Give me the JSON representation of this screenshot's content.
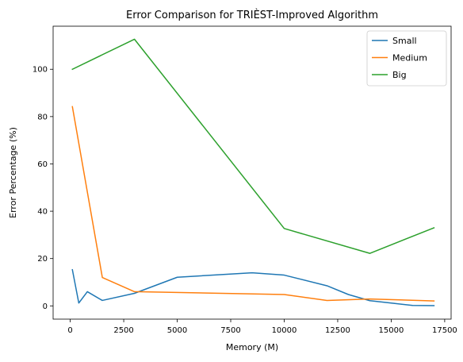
{
  "chart_data": {
    "type": "line",
    "title": "Error Comparison for TRIÈST-Improved Algorithm",
    "xlabel": "Memory (M)",
    "ylabel": "Error Percentage (%)",
    "xlim": [
      -800,
      17800
    ],
    "ylim": [
      -5.6,
      118.2
    ],
    "xticks": [
      0,
      2500,
      5000,
      7500,
      10000,
      12500,
      15000,
      17500
    ],
    "xtick_labels": [
      "0",
      "2500",
      "5000",
      "7500",
      "10000",
      "12500",
      "15000",
      "17500"
    ],
    "yticks": [
      0,
      20,
      40,
      60,
      80,
      100
    ],
    "ytick_labels": [
      "0",
      "20",
      "40",
      "60",
      "80",
      "100"
    ],
    "grid": false,
    "legend_position": "top-right",
    "series": [
      {
        "name": "Small",
        "color": "#1f77b4",
        "x": [
          100,
          400,
          800,
          1500,
          3000,
          5000,
          8500,
          10000,
          12000,
          13000,
          14000,
          16000,
          17000
        ],
        "y": [
          15.3,
          1.2,
          6.0,
          2.3,
          5.3,
          12.1,
          14.0,
          13.0,
          8.5,
          4.8,
          2.2,
          0.2,
          0.1
        ]
      },
      {
        "name": "Medium",
        "color": "#ff7f0e",
        "x": [
          100,
          1500,
          3000,
          10000,
          12000,
          14000,
          17000
        ],
        "y": [
          84.2,
          12.0,
          6.0,
          4.8,
          2.3,
          2.9,
          2.1
        ]
      },
      {
        "name": "Big",
        "color": "#2ca02c",
        "x": [
          100,
          3000,
          10000,
          14000,
          17000
        ],
        "y": [
          100.0,
          112.7,
          32.7,
          22.2,
          33.0
        ]
      }
    ]
  }
}
